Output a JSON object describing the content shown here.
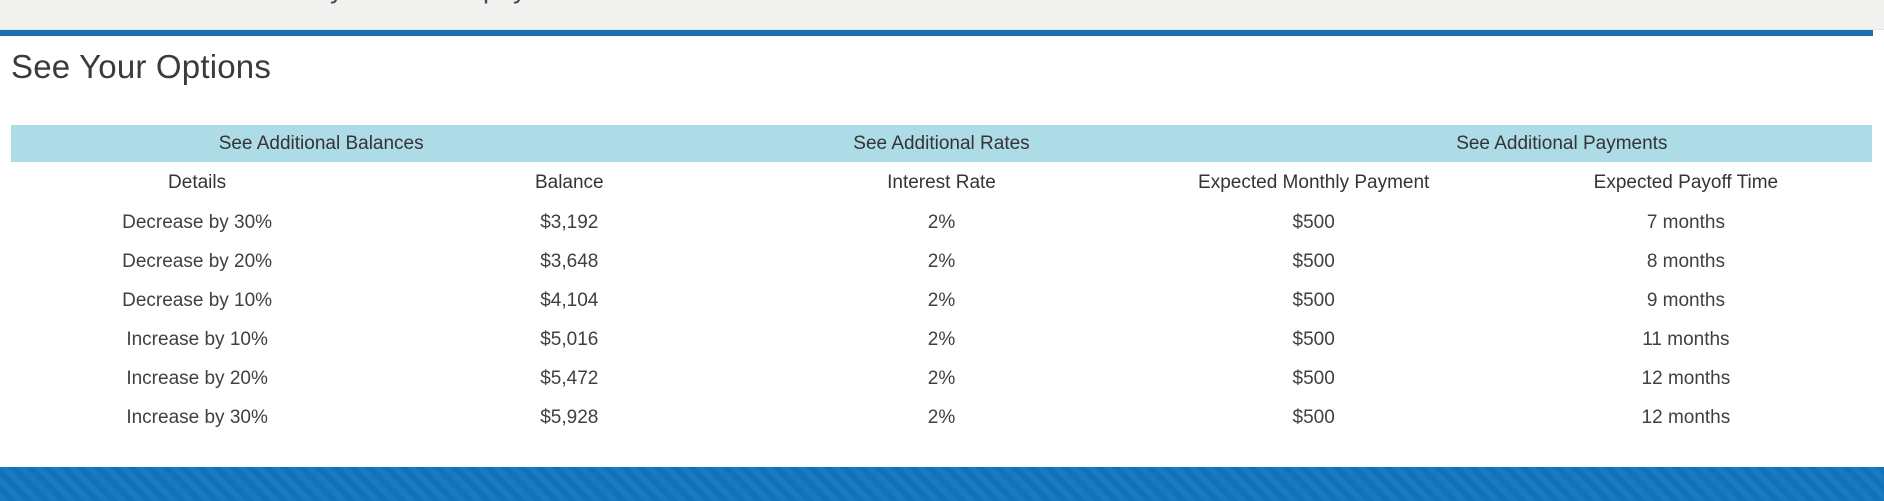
{
  "top_strip": {
    "clipped_fragments": [
      "y",
      "pay"
    ]
  },
  "section": {
    "title": "See Your Options"
  },
  "band": {
    "items": [
      {
        "label": "See Additional Balances"
      },
      {
        "label": "See Additional Rates"
      },
      {
        "label": "See Additional Payments"
      }
    ]
  },
  "table": {
    "columns": [
      "Details",
      "Balance",
      "Interest Rate",
      "Expected Monthly Payment",
      "Expected Payoff Time"
    ],
    "rows": [
      [
        "Decrease by 30%",
        "$3,192",
        "2%",
        "$500",
        "7 months"
      ],
      [
        "Decrease by 20%",
        "$3,648",
        "2%",
        "$500",
        "8 months"
      ],
      [
        "Decrease by 10%",
        "$4,104",
        "2%",
        "$500",
        "9 months"
      ],
      [
        "Increase by 10%",
        "$5,016",
        "2%",
        "$500",
        "11 months"
      ],
      [
        "Increase by 20%",
        "$5,472",
        "2%",
        "$500",
        "12 months"
      ],
      [
        "Increase by 30%",
        "$5,928",
        "2%",
        "$500",
        "12 months"
      ]
    ]
  },
  "colors": {
    "rule_blue": "#1d6fae",
    "band_blue": "#addbe6",
    "footer_blue": "#1173bd",
    "top_strip_grey": "#f1f1ef",
    "text_dark": "#3f4041"
  }
}
